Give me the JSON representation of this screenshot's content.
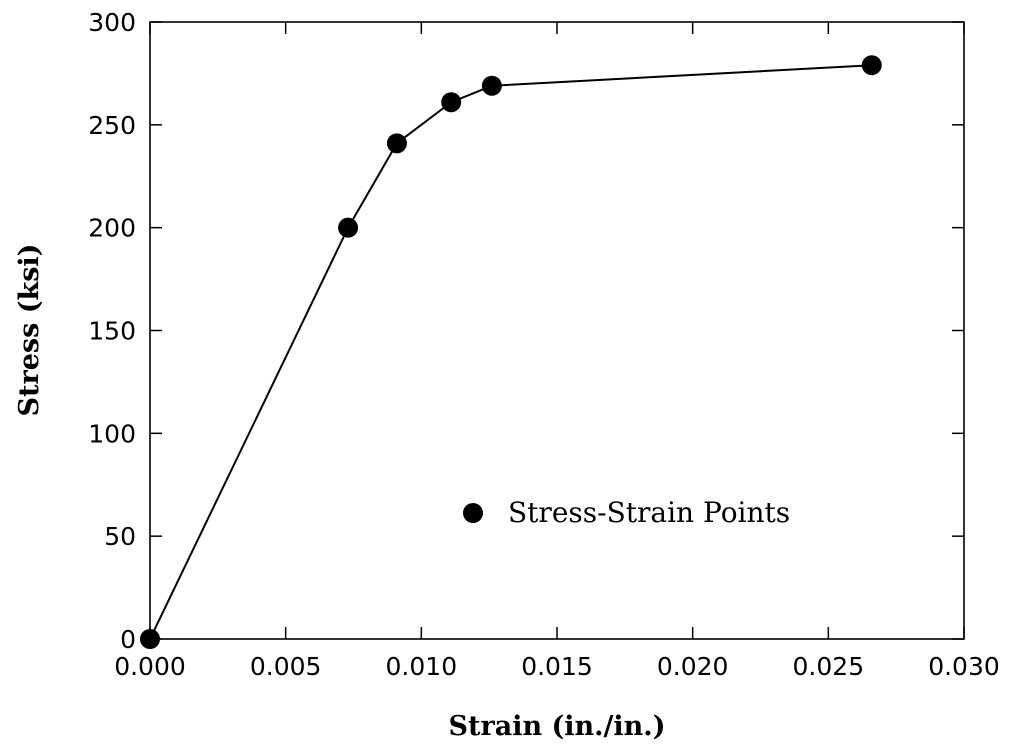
{
  "chart_data": {
    "type": "line",
    "title": "",
    "xlabel": "Strain (in./in.)",
    "ylabel": "Stress (ksi)",
    "xlim": [
      0,
      0.03
    ],
    "ylim": [
      0,
      300
    ],
    "xticks": [
      "0.000",
      "0.005",
      "0.010",
      "0.015",
      "0.020",
      "0.025",
      "0.030"
    ],
    "yticks": [
      "0",
      "50",
      "100",
      "150",
      "200",
      "250",
      "300"
    ],
    "grid": false,
    "legend_position": "lower-right",
    "series": [
      {
        "name": "Stress-Strain Points",
        "marker": "filled-circle",
        "color": "#000000",
        "x": [
          0.0,
          0.0073,
          0.0091,
          0.0111,
          0.0126,
          0.0266
        ],
        "y": [
          0,
          200,
          241,
          261,
          269,
          279
        ]
      }
    ]
  }
}
